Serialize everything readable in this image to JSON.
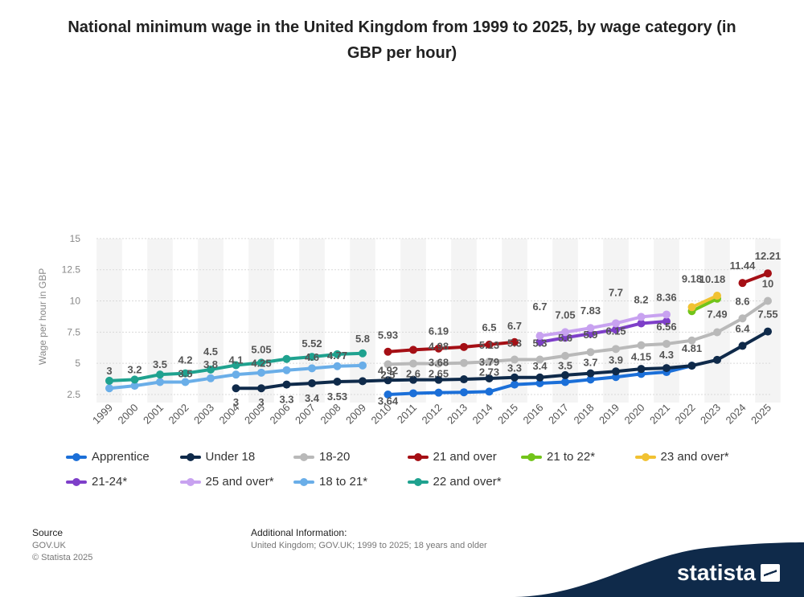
{
  "title": "National minimum wage in the United Kingdom from 1999 to 2025, by wage category (in GBP per hour)",
  "footer": {
    "source_heading": "Source",
    "source_lines": [
      "GOV.UK",
      "© Statista 2025"
    ],
    "info_heading": "Additional Information:",
    "info_text": "United Kingdom; GOV.UK; 1999 to 2025; 18 years and older"
  },
  "brand": "statista",
  "chart_data": {
    "type": "line",
    "title": "National minimum wage in the United Kingdom from 1999 to 2025, by wage category (in GBP per hour)",
    "xlabel": "",
    "ylabel": "Wage per hour in GBP",
    "ylim": [
      2.5,
      15
    ],
    "yticks": [
      2.5,
      5,
      7.5,
      10,
      12.5,
      15
    ],
    "yticklabels": [
      "2.5",
      "5",
      "7.5",
      "10",
      "12.5",
      "15"
    ],
    "categories": [
      "1999",
      "2000",
      "2001",
      "2002",
      "2003",
      "2004",
      "2005",
      "2006",
      "2007",
      "2008",
      "2009",
      "2010",
      "2011",
      "2012",
      "2013",
      "2014",
      "2015",
      "2016",
      "2017",
      "2018",
      "2019",
      "2020",
      "2021",
      "2022",
      "2023",
      "2024",
      "2025"
    ],
    "grid": true,
    "legend_position": "bottom",
    "series": [
      {
        "name": "Apprentice",
        "color": "#1b6fd8",
        "values": [
          null,
          null,
          null,
          null,
          null,
          null,
          null,
          null,
          null,
          null,
          null,
          2.5,
          2.6,
          2.65,
          2.68,
          2.73,
          3.3,
          3.4,
          3.5,
          3.7,
          3.9,
          4.15,
          4.3,
          4.81,
          null,
          null,
          null
        ]
      },
      {
        "name": "Under 18",
        "color": "#0f2a4a",
        "values": [
          null,
          null,
          null,
          null,
          null,
          3,
          3,
          3.3,
          3.4,
          3.53,
          3.57,
          3.64,
          3.68,
          3.68,
          3.72,
          3.79,
          3.87,
          3.87,
          4.05,
          4.2,
          4.35,
          4.55,
          4.62,
          4.81,
          5.28,
          6.4,
          7.55
        ]
      },
      {
        "name": "18-20",
        "color": "#b9b9b9",
        "values": [
          null,
          null,
          null,
          null,
          null,
          null,
          null,
          null,
          null,
          null,
          null,
          4.92,
          4.98,
          4.98,
          5.03,
          5.13,
          5.3,
          5.3,
          5.6,
          5.9,
          6.15,
          6.45,
          6.56,
          6.83,
          7.49,
          8.6,
          10
        ]
      },
      {
        "name": "21 and over",
        "color": "#a50f15",
        "values": [
          null,
          null,
          null,
          null,
          null,
          null,
          null,
          null,
          null,
          null,
          null,
          5.93,
          6.08,
          6.19,
          6.31,
          6.5,
          6.7,
          null,
          null,
          null,
          null,
          null,
          null,
          null,
          null,
          11.44,
          12.21
        ]
      },
      {
        "name": "21 to 22*",
        "color": "#72c41a",
        "values": [
          null,
          null,
          null,
          null,
          null,
          null,
          null,
          null,
          null,
          null,
          null,
          null,
          null,
          null,
          null,
          null,
          null,
          null,
          null,
          null,
          null,
          null,
          null,
          9.18,
          10.18,
          null,
          null
        ]
      },
      {
        "name": "23 and over*",
        "color": "#f1c232",
        "values": [
          null,
          null,
          null,
          null,
          null,
          null,
          null,
          null,
          null,
          null,
          null,
          null,
          null,
          null,
          null,
          null,
          null,
          null,
          null,
          null,
          null,
          null,
          null,
          9.5,
          10.42,
          null,
          null
        ]
      },
      {
        "name": "21-24*",
        "color": "#7e3fc9",
        "values": [
          null,
          null,
          null,
          null,
          null,
          null,
          null,
          null,
          null,
          null,
          null,
          null,
          null,
          null,
          null,
          null,
          null,
          6.7,
          7.05,
          7.38,
          7.7,
          8.2,
          8.36,
          null,
          null,
          null,
          null
        ]
      },
      {
        "name": "25 and over*",
        "color": "#c8a2f0",
        "values": [
          null,
          null,
          null,
          null,
          null,
          null,
          null,
          null,
          null,
          null,
          null,
          null,
          null,
          null,
          null,
          null,
          null,
          7.2,
          7.5,
          7.83,
          8.21,
          8.72,
          8.91,
          null,
          null,
          null,
          null
        ]
      },
      {
        "name": "18 to 21*",
        "color": "#6aaee8",
        "values": [
          3,
          3.2,
          3.5,
          3.5,
          3.8,
          4.1,
          4.25,
          4.45,
          4.6,
          4.77,
          4.83,
          null,
          null,
          null,
          null,
          null,
          null,
          null,
          null,
          null,
          null,
          null,
          null,
          null,
          null,
          null,
          null
        ]
      },
      {
        "name": "22 and over*",
        "color": "#1fa28f",
        "values": [
          3.6,
          3.7,
          4.1,
          4.2,
          4.5,
          4.85,
          5.05,
          5.35,
          5.52,
          5.73,
          5.8,
          null,
          null,
          null,
          null,
          null,
          null,
          null,
          null,
          null,
          null,
          null,
          null,
          null,
          null,
          null,
          null
        ]
      }
    ],
    "data_labels": [
      {
        "series": "22 and over*",
        "x": "1999",
        "text": "3"
      },
      {
        "series": "22 and over*",
        "x": "2000",
        "text": "3.2"
      },
      {
        "series": "22 and over*",
        "x": "2001",
        "text": "3.5"
      },
      {
        "series": "22 and over*",
        "x": "2002",
        "text": "4.2"
      },
      {
        "series": "22 and over*",
        "x": "2002",
        "text": "3.5"
      },
      {
        "series": "22 and over*",
        "x": "2003",
        "text": "4.5"
      },
      {
        "series": "22 and over*",
        "x": "2003",
        "text": "3.8"
      },
      {
        "series": "22 and over*",
        "x": "2004",
        "text": "4.1"
      },
      {
        "series": "22 and over*",
        "x": "2005",
        "text": "5.05"
      },
      {
        "series": "22 and over*",
        "x": "2005",
        "text": "4.25"
      },
      {
        "series": "22 and over*",
        "x": "2007",
        "text": "5.52"
      },
      {
        "series": "22 and over*",
        "x": "2007",
        "text": "4.6"
      },
      {
        "series": "22 and over*",
        "x": "2008",
        "text": "4.77"
      },
      {
        "series": "22 and over*",
        "x": "2009",
        "text": "5.8"
      },
      {
        "series": "Under 18",
        "x": "2004",
        "text": "3"
      },
      {
        "series": "Under 18",
        "x": "2005",
        "text": "3"
      },
      {
        "series": "Under 18",
        "x": "2006",
        "text": "3.3"
      },
      {
        "series": "Under 18",
        "x": "2007",
        "text": "3.4"
      },
      {
        "series": "Under 18",
        "x": "2008",
        "text": "3.53"
      },
      {
        "series": "21 and over",
        "x": "2010",
        "text": "5.93"
      },
      {
        "series": "21 and over",
        "x": "2010",
        "text": "4.92"
      },
      {
        "series": "Under 18",
        "x": "2010",
        "text": "3.64"
      },
      {
        "series": "Apprentice",
        "x": "2010",
        "text": "2.5"
      },
      {
        "series": "Apprentice",
        "x": "2011",
        "text": "2.6"
      },
      {
        "series": "21 and over",
        "x": "2012",
        "text": "6.19"
      },
      {
        "series": "18-20",
        "x": "2012",
        "text": "4.98"
      },
      {
        "series": "Under 18",
        "x": "2012",
        "text": "3.68"
      },
      {
        "series": "Apprentice",
        "x": "2012",
        "text": "2.65"
      },
      {
        "series": "21 and over",
        "x": "2014",
        "text": "6.5"
      },
      {
        "series": "18-20",
        "x": "2014",
        "text": "5.13"
      },
      {
        "series": "Under 18",
        "x": "2014",
        "text": "3.79"
      },
      {
        "series": "Apprentice",
        "x": "2014",
        "text": "2.73"
      },
      {
        "series": "21 and over",
        "x": "2015",
        "text": "6.7"
      },
      {
        "series": "18-20",
        "x": "2015",
        "text": "5.3"
      },
      {
        "series": "Apprentice",
        "x": "2015",
        "text": "3.3"
      },
      {
        "series": "25 and over*",
        "x": "2016",
        "text": "6.7"
      },
      {
        "series": "18-20",
        "x": "2016",
        "text": "5.3"
      },
      {
        "series": "Apprentice",
        "x": "2016",
        "text": "3.4"
      },
      {
        "series": "25 and over*",
        "x": "2017",
        "text": "7.05"
      },
      {
        "series": "18-20",
        "x": "2017",
        "text": "5.6"
      },
      {
        "series": "Apprentice",
        "x": "2017",
        "text": "3.5"
      },
      {
        "series": "25 and over*",
        "x": "2018",
        "text": "7.83"
      },
      {
        "series": "18-20",
        "x": "2018",
        "text": "5.9"
      },
      {
        "series": "Apprentice",
        "x": "2018",
        "text": "3.7"
      },
      {
        "series": "25 and over*",
        "x": "2019",
        "text": "7.7"
      },
      {
        "series": "18-20",
        "x": "2019",
        "text": "6.15"
      },
      {
        "series": "Apprentice",
        "x": "2019",
        "text": "3.9"
      },
      {
        "series": "25 and over*",
        "x": "2020",
        "text": "8.2"
      },
      {
        "series": "Apprentice",
        "x": "2020",
        "text": "4.15"
      },
      {
        "series": "25 and over*",
        "x": "2021",
        "text": "8.36"
      },
      {
        "series": "18-20",
        "x": "2021",
        "text": "6.56"
      },
      {
        "series": "Apprentice",
        "x": "2021",
        "text": "4.3"
      },
      {
        "series": "21 to 22*",
        "x": "2022",
        "text": "9.18"
      },
      {
        "series": "Under 18",
        "x": "2022",
        "text": "4.81"
      },
      {
        "series": "23 and over*",
        "x": "2023",
        "text": "10.18"
      },
      {
        "series": "18-20",
        "x": "2023",
        "text": "7.49"
      },
      {
        "series": "21 and over",
        "x": "2024",
        "text": "11.44"
      },
      {
        "series": "18-20",
        "x": "2024",
        "text": "8.6"
      },
      {
        "series": "Under 18",
        "x": "2024",
        "text": "6.4"
      },
      {
        "series": "21 and over",
        "x": "2025",
        "text": "12.21"
      },
      {
        "series": "18-20",
        "x": "2025",
        "text": "10"
      },
      {
        "series": "Under 18",
        "x": "2025",
        "text": "7.55"
      }
    ]
  }
}
